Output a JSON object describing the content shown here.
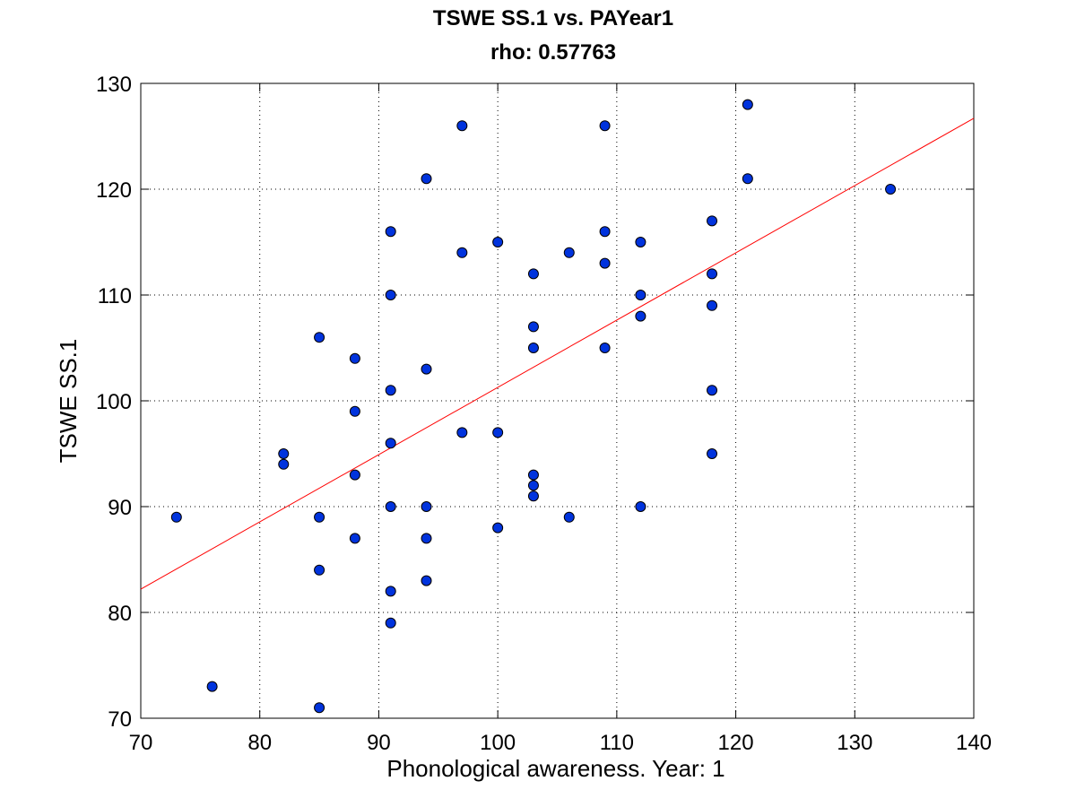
{
  "chart_data": {
    "type": "scatter",
    "title": "TSWE SS.1 vs. PAYear1",
    "subtitle": "rho: 0.57763",
    "xlabel": "Phonological awareness. Year: 1",
    "ylabel": "TSWE SS.1",
    "xlim": [
      70,
      140
    ],
    "ylim": [
      70,
      130
    ],
    "xticks": [
      70,
      80,
      90,
      100,
      110,
      120,
      130,
      140
    ],
    "yticks": [
      70,
      80,
      90,
      100,
      110,
      120,
      130
    ],
    "grid": true,
    "marker_color": "#0033dd",
    "fit_line_color": "#ff0000",
    "fit_line": {
      "x": [
        70,
        140
      ],
      "y": [
        82.2,
        126.7
      ]
    },
    "points": [
      [
        73,
        89
      ],
      [
        76,
        73
      ],
      [
        82,
        95
      ],
      [
        82,
        94
      ],
      [
        85,
        106
      ],
      [
        85,
        89
      ],
      [
        85,
        84
      ],
      [
        85,
        71
      ],
      [
        88,
        104
      ],
      [
        88,
        99
      ],
      [
        88,
        93
      ],
      [
        88,
        87
      ],
      [
        91,
        116
      ],
      [
        91,
        110
      ],
      [
        91,
        101
      ],
      [
        91,
        96
      ],
      [
        91,
        90
      ],
      [
        91,
        82
      ],
      [
        91,
        79
      ],
      [
        94,
        121
      ],
      [
        94,
        103
      ],
      [
        94,
        90
      ],
      [
        94,
        87
      ],
      [
        94,
        83
      ],
      [
        97,
        126
      ],
      [
        97,
        114
      ],
      [
        97,
        97
      ],
      [
        100,
        115
      ],
      [
        100,
        97
      ],
      [
        100,
        88
      ],
      [
        103,
        112
      ],
      [
        103,
        107
      ],
      [
        103,
        105
      ],
      [
        103,
        93
      ],
      [
        103,
        92
      ],
      [
        103,
        91
      ],
      [
        106,
        114
      ],
      [
        106,
        89
      ],
      [
        109,
        126
      ],
      [
        109,
        116
      ],
      [
        109,
        113
      ],
      [
        109,
        105
      ],
      [
        112,
        115
      ],
      [
        112,
        110
      ],
      [
        112,
        108
      ],
      [
        112,
        90
      ],
      [
        118,
        117
      ],
      [
        118,
        112
      ],
      [
        118,
        109
      ],
      [
        118,
        101
      ],
      [
        118,
        95
      ],
      [
        121,
        128
      ],
      [
        121,
        121
      ],
      [
        133,
        120
      ]
    ]
  }
}
